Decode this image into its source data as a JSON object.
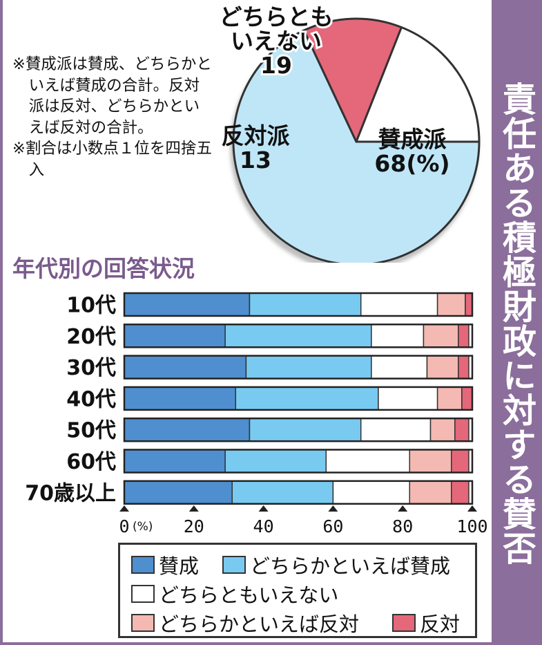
{
  "side_title": "責任ある積極財政に対する賛否",
  "notes": [
    "※賛成派は賛成、どちらかといえば賛成の合計。反対派は反対、どちらかといえば反対の合計。",
    "※割合は小数点１位を四捨五入"
  ],
  "chart_data": [
    {
      "type": "pie",
      "title": "",
      "slices": [
        {
          "label_lines": [
            "賛成派",
            "68(%)"
          ],
          "value": 68,
          "color": "#bfe6f7"
        },
        {
          "label_lines": [
            "反対派",
            "13"
          ],
          "value": 13,
          "color": "#e4677a"
        },
        {
          "label_lines": [
            "どちらとも",
            "いえない",
            "19"
          ],
          "value": 19,
          "color": "#ffffff"
        }
      ]
    },
    {
      "type": "bar",
      "orientation": "horizontal",
      "stacked": true,
      "title": "年代別の回答状況",
      "categories": [
        "10代",
        "20代",
        "30代",
        "40代",
        "50代",
        "60代",
        "70歳以上"
      ],
      "xlim": [
        0,
        100
      ],
      "xticks": [
        "0",
        "20",
        "40",
        "60",
        "80",
        "100"
      ],
      "x_unit_label": "(%)",
      "series": [
        {
          "name": "賛成",
          "color": "#4f8fcf",
          "values": [
            36,
            29,
            35,
            32,
            36,
            29,
            31
          ]
        },
        {
          "name": "どちらかといえば賛成",
          "color": "#79caf0",
          "values": [
            32,
            42,
            36,
            41,
            32,
            29,
            29
          ]
        },
        {
          "name": "どちらともいえない",
          "color": "#ffffff",
          "values": [
            22,
            15,
            16,
            17,
            20,
            24,
            22
          ]
        },
        {
          "name": "どちらかといえば反対",
          "color": "#f3b9b2",
          "values": [
            8,
            10,
            9,
            7,
            7,
            12,
            12
          ]
        },
        {
          "name": "反対",
          "color": "#e4677a",
          "values": [
            2,
            3,
            3,
            3,
            4,
            5,
            5
          ]
        }
      ]
    }
  ]
}
